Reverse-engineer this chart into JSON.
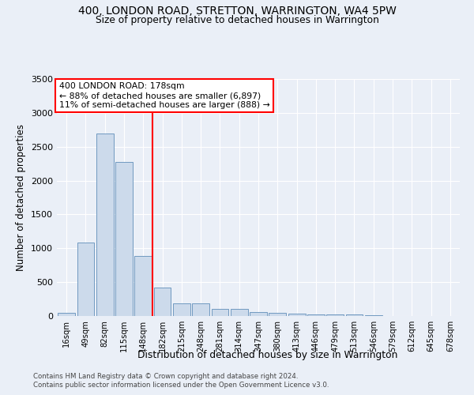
{
  "title1": "400, LONDON ROAD, STRETTON, WARRINGTON, WA4 5PW",
  "title2": "Size of property relative to detached houses in Warrington",
  "xlabel": "Distribution of detached houses by size in Warrington",
  "ylabel": "Number of detached properties",
  "categories": [
    "16sqm",
    "49sqm",
    "82sqm",
    "115sqm",
    "148sqm",
    "182sqm",
    "215sqm",
    "248sqm",
    "281sqm",
    "314sqm",
    "347sqm",
    "380sqm",
    "413sqm",
    "446sqm",
    "479sqm",
    "513sqm",
    "546sqm",
    "579sqm",
    "612sqm",
    "645sqm",
    "678sqm"
  ],
  "values": [
    50,
    1090,
    2700,
    2280,
    890,
    420,
    190,
    190,
    100,
    100,
    55,
    50,
    40,
    25,
    25,
    20,
    10,
    5,
    5,
    3,
    0
  ],
  "bar_color": "#ccdaeb",
  "bar_edge_color": "#7099c0",
  "annotation_text_line1": "400 LONDON ROAD: 178sqm",
  "annotation_text_line2": "← 88% of detached houses are smaller (6,897)",
  "annotation_text_line3": "11% of semi-detached houses are larger (888) →",
  "annotation_box_color": "white",
  "annotation_border_color": "red",
  "vline_color": "red",
  "vline_x_index": 4.5,
  "ylim": [
    0,
    3500
  ],
  "yticks": [
    0,
    500,
    1000,
    1500,
    2000,
    2500,
    3000,
    3500
  ],
  "bg_color": "#eaeff7",
  "grid_color": "#ffffff",
  "footer_line1": "Contains HM Land Registry data © Crown copyright and database right 2024.",
  "footer_line2": "Contains public sector information licensed under the Open Government Licence v3.0."
}
